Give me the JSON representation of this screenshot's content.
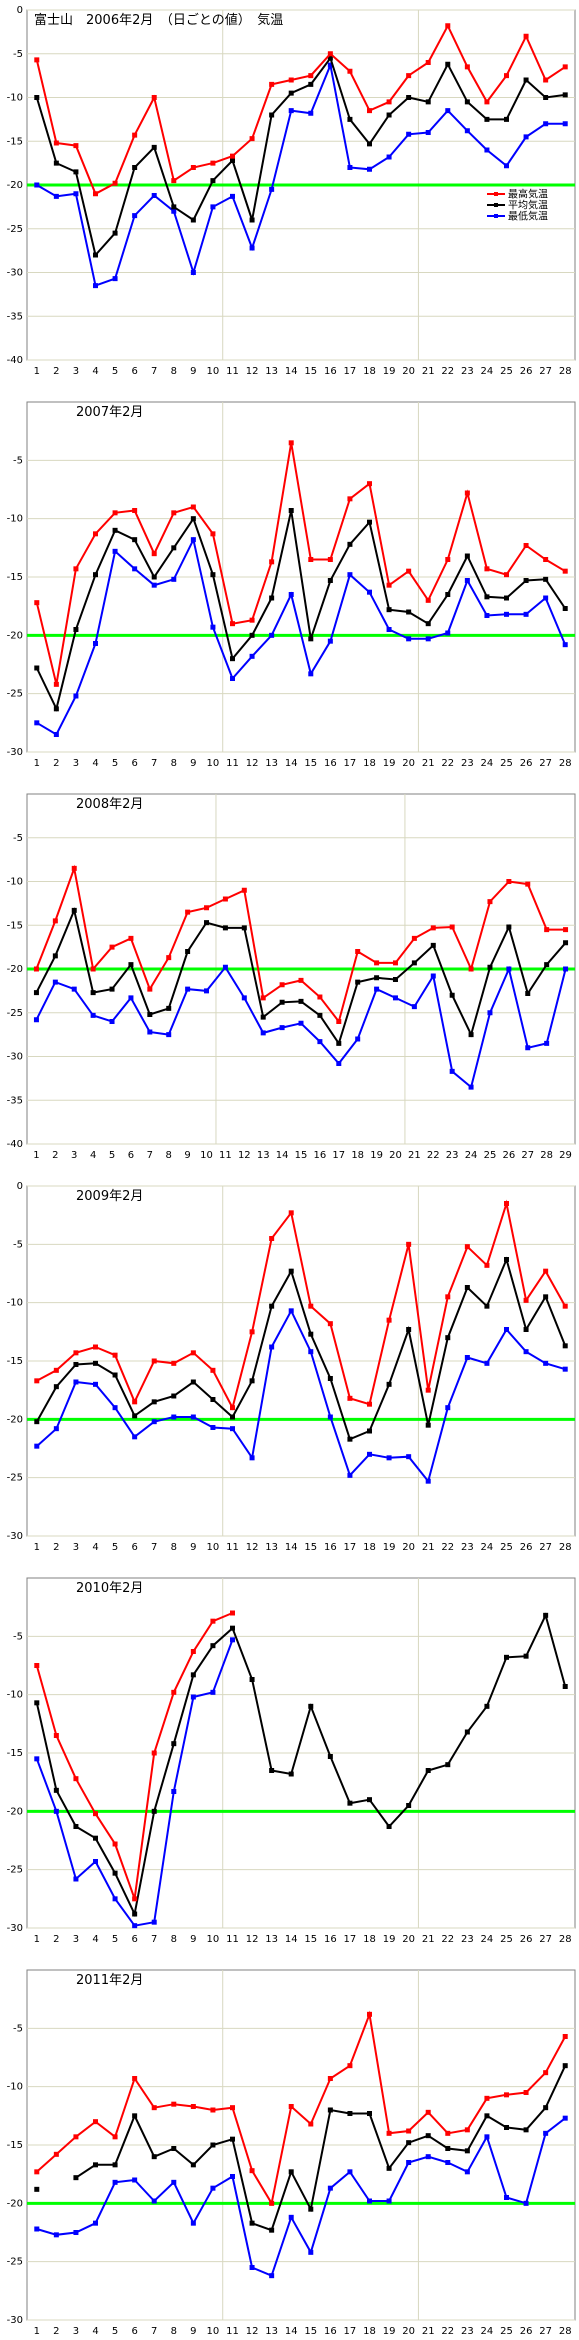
{
  "colors": {
    "max": "#ff0000",
    "avg": "#000000",
    "min": "#0000ff",
    "ref": "#00ff00",
    "grid": "#d8d8c0",
    "axis": "#808080"
  },
  "chart_data": [
    {
      "type": "line",
      "title": "富士山　2006年2月　（日ごとの値）　気温",
      "ylim": [
        -40,
        0
      ],
      "yticks": [
        0,
        -5,
        -10,
        -15,
        -20,
        -25,
        -30,
        -35,
        -40
      ],
      "ref_line": -20,
      "x": [
        1,
        2,
        3,
        4,
        5,
        6,
        7,
        8,
        9,
        10,
        11,
        12,
        13,
        14,
        15,
        16,
        17,
        18,
        19,
        20,
        21,
        22,
        23,
        24,
        25,
        26,
        27,
        28
      ],
      "legend": [
        "最高気温",
        "平均気温",
        "最低気温"
      ],
      "series": [
        {
          "name": "最高気温",
          "color": "#ff0000",
          "values": [
            -5.7,
            -15.2,
            -15.5,
            -21,
            -19.8,
            -14.3,
            -10,
            -19.5,
            -18,
            -17.5,
            -16.7,
            -14.7,
            -8.5,
            -8,
            -7.5,
            -5,
            -7,
            -11.5,
            -10.5,
            -7.5,
            -6,
            -1.8,
            -6.5,
            -10.5,
            -7.5,
            -3,
            -8,
            -6.5
          ]
        },
        {
          "name": "平均気温",
          "color": "#000000",
          "values": [
            -10,
            -17.5,
            -18.5,
            -28,
            -25.5,
            -18,
            -15.7,
            -22.5,
            -24,
            -19.5,
            -17.2,
            -24,
            -12,
            -9.5,
            -8.5,
            -5.5,
            -12.5,
            -15.3,
            -12,
            -10,
            -10.5,
            -6.2,
            -10.5,
            -12.5,
            -12.5,
            -8,
            -10,
            -9.7
          ]
        },
        {
          "name": "最低気温",
          "color": "#0000ff",
          "values": [
            -20,
            -21.3,
            -21,
            -31.5,
            -30.7,
            -23.5,
            -21.2,
            -23,
            -30,
            -22.5,
            -21.3,
            -27.2,
            -20.5,
            -11.5,
            -11.8,
            -6.3,
            -18,
            -18.2,
            -16.8,
            -14.2,
            -14,
            -11.5,
            -13.8,
            -16,
            -17.8,
            -14.5,
            -13,
            -13
          ]
        }
      ]
    },
    {
      "type": "line",
      "title": "2007年2月",
      "ylim": [
        -30,
        0
      ],
      "yticks": [
        -5,
        -10,
        -15,
        -20,
        -25,
        -30
      ],
      "ref_line": -20,
      "x": [
        1,
        2,
        3,
        4,
        5,
        6,
        7,
        8,
        9,
        10,
        11,
        12,
        13,
        14,
        15,
        16,
        17,
        18,
        19,
        20,
        21,
        22,
        23,
        24,
        25,
        26,
        27,
        28
      ],
      "series": [
        {
          "name": "最高気温",
          "color": "#ff0000",
          "values": [
            -17.2,
            -24.2,
            -14.3,
            -11.3,
            -9.5,
            -9.3,
            -13,
            -9.5,
            -9,
            -11.3,
            -19,
            -18.7,
            -13.7,
            -3.5,
            -13.5,
            -13.5,
            -8.3,
            -7,
            -15.7,
            -14.5,
            -17,
            -13.5,
            -7.8,
            -14.3,
            -14.8,
            -12.3,
            -13.5,
            -14.5
          ]
        },
        {
          "name": "平均気温",
          "color": "#000000",
          "values": [
            -22.8,
            -26.3,
            -19.5,
            -14.8,
            -11,
            -11.8,
            -15,
            -12.5,
            -10,
            -14.8,
            -22,
            -20,
            -16.8,
            -9.3,
            -20.3,
            -15.3,
            -12.2,
            -10.3,
            -17.8,
            -18,
            -19,
            -16.5,
            -13.2,
            -16.7,
            -16.8,
            -15.3,
            -15.2,
            -17.7
          ]
        },
        {
          "name": "最低気温",
          "color": "#0000ff",
          "values": [
            -27.5,
            -28.5,
            -25.2,
            -20.7,
            -12.8,
            -14.3,
            -15.7,
            -15.2,
            -11.8,
            -19.3,
            -23.7,
            -21.8,
            -20,
            -16.5,
            -23.3,
            -20.5,
            -14.8,
            -16.3,
            -19.5,
            -20.3,
            -20.3,
            -19.8,
            -15.3,
            -18.3,
            -18.2,
            -18.2,
            -16.8,
            -20.8
          ]
        }
      ]
    },
    {
      "type": "line",
      "title": "2008年2月",
      "ylim": [
        -40,
        0
      ],
      "yticks": [
        -5,
        -10,
        -15,
        -20,
        -25,
        -30,
        -35,
        -40
      ],
      "ref_line": -20,
      "x": [
        1,
        2,
        3,
        4,
        5,
        6,
        7,
        8,
        9,
        10,
        11,
        12,
        13,
        14,
        15,
        16,
        17,
        18,
        19,
        20,
        21,
        22,
        23,
        24,
        25,
        26,
        27,
        28,
        29
      ],
      "series": [
        {
          "name": "最高気温",
          "color": "#ff0000",
          "values": [
            -20,
            -14.5,
            -8.5,
            -20,
            -17.5,
            -16.5,
            -22.3,
            -18.7,
            -13.5,
            -13,
            -12,
            -11,
            -23.3,
            -21.8,
            -21.3,
            -23.2,
            -26,
            -18,
            -19.3,
            -19.3,
            -16.5,
            -15.3,
            -15.2,
            -20,
            -12.3,
            -10,
            -10.3,
            -15.5,
            -15.5
          ]
        },
        {
          "name": "平均気温",
          "color": "#000000",
          "values": [
            -22.7,
            -18.5,
            -13.3,
            -22.7,
            -22.3,
            -19.5,
            -25.2,
            -24.5,
            -18,
            -14.7,
            -15.3,
            -15.3,
            -25.5,
            -23.8,
            -23.7,
            -25.3,
            -28.5,
            -21.5,
            -21,
            -21.2,
            -19.3,
            -17.3,
            -23,
            -27.5,
            -19.8,
            -15.2,
            -22.8,
            -19.5,
            -17
          ]
        },
        {
          "name": "最低気温",
          "color": "#0000ff",
          "values": [
            -25.8,
            -21.5,
            -22.3,
            -25.3,
            -26,
            -23.3,
            -27.2,
            -27.5,
            -22.3,
            -22.5,
            -19.8,
            -23.3,
            -27.3,
            -26.7,
            -26.2,
            -28.3,
            -30.8,
            -28,
            -22.3,
            -23.3,
            -24.3,
            -20.8,
            -31.7,
            -33.5,
            -25,
            -20,
            -29,
            -28.5,
            -20
          ]
        }
      ]
    },
    {
      "type": "line",
      "title": "2009年2月",
      "ylim": [
        -30,
        0
      ],
      "yticks": [
        0,
        -5,
        -10,
        -15,
        -20,
        -25,
        -30
      ],
      "ref_line": -20,
      "x": [
        1,
        2,
        3,
        4,
        5,
        6,
        7,
        8,
        9,
        10,
        11,
        12,
        13,
        14,
        15,
        16,
        17,
        18,
        19,
        20,
        21,
        22,
        23,
        24,
        25,
        26,
        27,
        28
      ],
      "series": [
        {
          "name": "最高気温",
          "color": "#ff0000",
          "values": [
            -16.7,
            -15.8,
            -14.3,
            -13.8,
            -14.5,
            -18.5,
            -15,
            -15.2,
            -14.3,
            -15.8,
            -19,
            -12.5,
            -4.5,
            -2.3,
            -10.3,
            -11.8,
            -18.2,
            -18.7,
            -11.5,
            -5,
            -17.5,
            -9.5,
            -5.2,
            -6.8,
            -1.5,
            -9.8,
            -7.3,
            -10.3
          ]
        },
        {
          "name": "平均気温",
          "color": "#000000",
          "values": [
            -20.2,
            -17.2,
            -15.3,
            -15.2,
            -16.2,
            -19.7,
            -18.5,
            -18,
            -16.8,
            -18.3,
            -19.8,
            -16.7,
            -10.3,
            -7.3,
            -12.7,
            -16.5,
            -21.7,
            -21,
            -17,
            -12.3,
            -20.5,
            -13,
            -8.7,
            -10.3,
            -6.3,
            -12.3,
            -9.5,
            -13.7
          ]
        },
        {
          "name": "最低気温",
          "color": "#0000ff",
          "values": [
            -22.3,
            -20.8,
            -16.8,
            -17,
            -19,
            -21.5,
            -20.2,
            -19.8,
            -19.8,
            -20.7,
            -20.8,
            -23.3,
            -13.8,
            -10.7,
            -14.2,
            -19.8,
            -24.8,
            -23,
            -23.3,
            -23.2,
            -25.3,
            -19,
            -14.7,
            -15.2,
            -12.3,
            -14.2,
            -15.2,
            -15.7
          ]
        }
      ]
    },
    {
      "type": "line",
      "title": "2010年2月",
      "ylim": [
        -30,
        0
      ],
      "yticks": [
        -5,
        -10,
        -15,
        -20,
        -25,
        -30
      ],
      "ref_line": -20,
      "x": [
        1,
        2,
        3,
        4,
        5,
        6,
        7,
        8,
        9,
        10,
        11,
        12,
        13,
        14,
        15,
        16,
        17,
        18,
        19,
        20,
        21,
        22,
        23,
        24,
        25,
        26,
        27,
        28
      ],
      "series": [
        {
          "name": "最高気温",
          "color": "#ff0000",
          "values": [
            -7.5,
            -13.5,
            -17.2,
            -20.2,
            -22.8,
            -27.5,
            -15,
            -9.8,
            -6.3,
            -3.7,
            -3,
            null,
            null,
            null,
            null,
            null,
            null,
            null,
            null,
            null,
            null,
            null,
            null,
            null,
            null,
            null,
            null,
            null
          ]
        },
        {
          "name": "平均気温",
          "color": "#000000",
          "values": [
            -10.7,
            -18.2,
            -21.3,
            -22.3,
            -25.3,
            -28.8,
            -20,
            -14.2,
            -8.3,
            -5.8,
            -4.3,
            -8.7,
            -16.5,
            -16.8,
            -11,
            -15.3,
            -19.3,
            -19,
            -21.3,
            -19.5,
            -16.5,
            -16,
            -13.2,
            -11,
            -6.8,
            -6.7,
            -3.2,
            -9.3
          ]
        },
        {
          "name": "最低気温",
          "color": "#0000ff",
          "values": [
            -15.5,
            -20,
            -25.8,
            -24.3,
            -27.5,
            -29.8,
            -29.5,
            -18.3,
            -10.2,
            -9.8,
            -5.3,
            null,
            null,
            null,
            null,
            null,
            null,
            null,
            null,
            null,
            null,
            null,
            null,
            null,
            null,
            null,
            null,
            null
          ]
        }
      ]
    },
    {
      "type": "line",
      "title": "2011年2月",
      "ylim": [
        -30,
        0
      ],
      "yticks": [
        -5,
        -10,
        -15,
        -20,
        -25,
        -30
      ],
      "ref_line": -20,
      "x": [
        1,
        2,
        3,
        4,
        5,
        6,
        7,
        8,
        9,
        10,
        11,
        12,
        13,
        14,
        15,
        16,
        17,
        18,
        19,
        20,
        21,
        22,
        23,
        24,
        25,
        26,
        27,
        28
      ],
      "series": [
        {
          "name": "最高気温",
          "color": "#ff0000",
          "values": [
            -17.3,
            -15.8,
            -14.3,
            -13,
            -14.3,
            -9.3,
            -11.8,
            -11.5,
            -11.7,
            -12,
            -11.8,
            -17.2,
            -20,
            -11.7,
            -13.2,
            -9.3,
            -8.2,
            -3.8,
            -14,
            -13.8,
            -12.2,
            -14,
            -13.7,
            -11,
            -10.7,
            -10.5,
            -8.8,
            -5.7
          ]
        },
        {
          "name": "平均気温",
          "color": "#000000",
          "values": [
            -18.8,
            null,
            -17.8,
            -16.7,
            -16.7,
            -12.5,
            -16,
            -15.3,
            -16.7,
            -15,
            -14.5,
            -21.7,
            -22.3,
            -17.3,
            -20.5,
            -12,
            -12.3,
            -12.3,
            -17,
            -14.8,
            -14.2,
            -15.3,
            -15.5,
            -12.5,
            -13.5,
            -13.7,
            -11.8,
            -8.2
          ]
        },
        {
          "name": "最低気温",
          "color": "#0000ff",
          "values": [
            -22.2,
            -22.7,
            -22.5,
            -21.7,
            -18.2,
            -18,
            -19.8,
            -18.2,
            -21.7,
            -18.7,
            -17.7,
            -25.5,
            -26.2,
            -21.2,
            -24.2,
            -18.7,
            -17.3,
            -19.8,
            -19.8,
            -16.5,
            -16,
            -16.5,
            -17.3,
            -14.3,
            -19.5,
            -20,
            -14,
            -12.7
          ]
        }
      ]
    }
  ]
}
